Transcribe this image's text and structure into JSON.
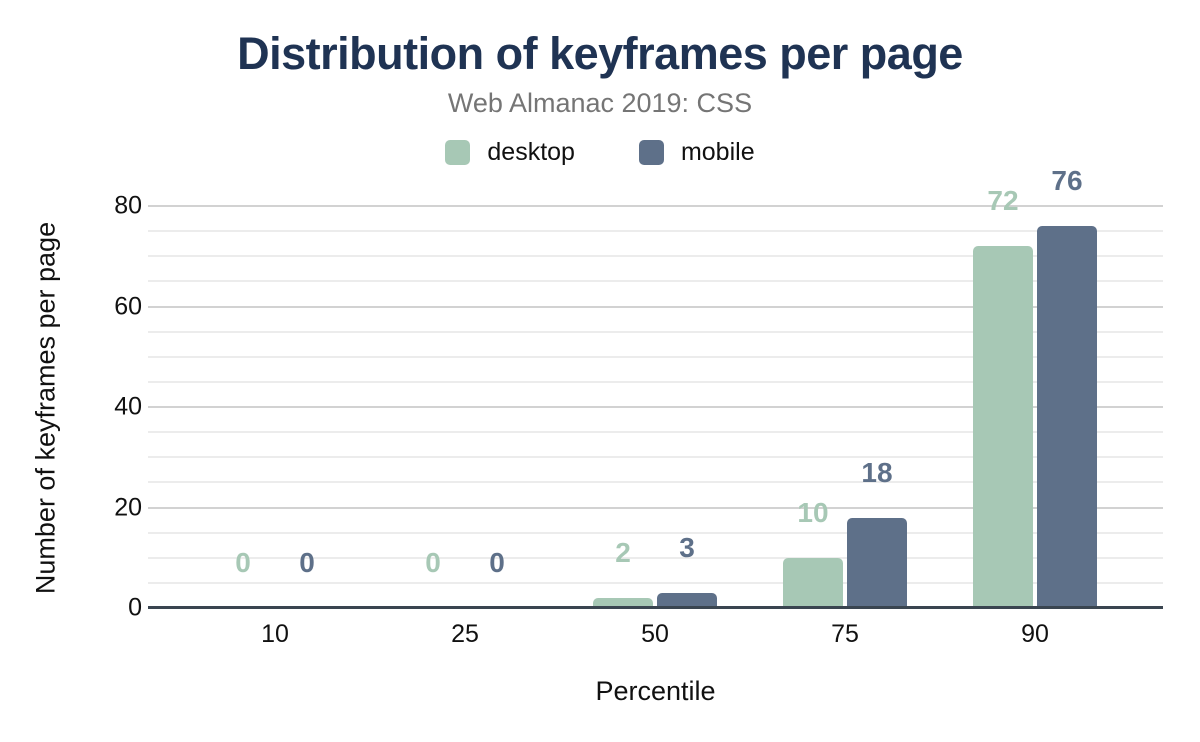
{
  "chart_data": {
    "type": "bar",
    "title": "Distribution of keyframes per page",
    "subtitle": "Web Almanac 2019: CSS",
    "xlabel": "Percentile",
    "ylabel": "Number of keyframes per page",
    "categories": [
      "10",
      "25",
      "50",
      "75",
      "90"
    ],
    "series": [
      {
        "name": "desktop",
        "color": "#a7c8b5",
        "values": [
          0,
          0,
          2,
          10,
          72
        ]
      },
      {
        "name": "mobile",
        "color": "#5e7089",
        "values": [
          0,
          0,
          3,
          18,
          76
        ]
      }
    ],
    "ylim": [
      0,
      80
    ],
    "yticks": [
      0,
      20,
      40,
      60,
      80
    ],
    "minor_grid_step": 5,
    "major_grid_step": 20,
    "grid": true,
    "legend_position": "top",
    "data_labels": true,
    "colors": {
      "title": "#1f3353",
      "subtitle": "#757575",
      "axis_line": "#3a4550",
      "major_grid": "#d2d2d2",
      "minor_grid": "#ececec",
      "tick_text": "#111111"
    }
  }
}
